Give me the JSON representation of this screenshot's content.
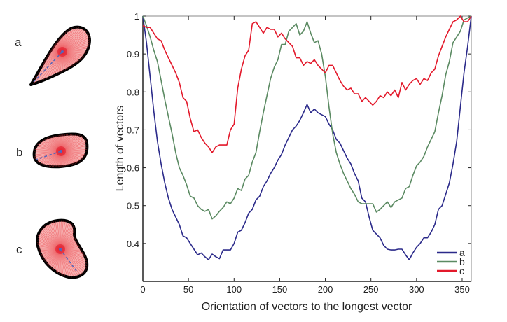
{
  "panels": [
    {
      "label": "a"
    },
    {
      "label": "b"
    },
    {
      "label": "c"
    }
  ],
  "colors": {
    "a": "#2b2a8a",
    "b": "#5b8a62",
    "c": "#e3192b",
    "shape_fill": "#f28b8b",
    "shape_outline": "#000000",
    "longest_vector": "#5566bb"
  },
  "chart_data": {
    "type": "line",
    "title": "",
    "xlabel": "Orientation of vectors to the longest vector",
    "ylabel": "Length of vectors",
    "xlim": [
      0,
      360
    ],
    "ylim": [
      0.3,
      1.0
    ],
    "xticks": [
      0,
      50,
      100,
      150,
      200,
      250,
      300,
      350
    ],
    "yticks": [
      0.4,
      0.5,
      0.6,
      0.7,
      0.8,
      0.9,
      1
    ],
    "xtick_labels": [
      "0",
      "50",
      "100",
      "150",
      "200",
      "250",
      "300",
      "350"
    ],
    "ytick_labels": [
      "0.4",
      "0.5",
      "0.6",
      "0.7",
      "0.8",
      "0.9",
      "1"
    ],
    "grid": false,
    "legend_position": "bottom-right",
    "x": [
      0,
      4,
      8,
      12,
      16,
      20,
      24,
      28,
      32,
      36,
      40,
      44,
      48,
      52,
      56,
      60,
      64,
      68,
      72,
      76,
      80,
      84,
      88,
      92,
      96,
      100,
      104,
      108,
      112,
      116,
      120,
      124,
      128,
      132,
      136,
      140,
      144,
      148,
      152,
      156,
      160,
      164,
      168,
      172,
      176,
      180,
      184,
      188,
      192,
      196,
      200,
      204,
      208,
      212,
      216,
      220,
      224,
      228,
      232,
      236,
      240,
      244,
      248,
      252,
      256,
      260,
      264,
      268,
      272,
      276,
      280,
      284,
      288,
      292,
      296,
      300,
      304,
      308,
      312,
      316,
      320,
      324,
      328,
      332,
      336,
      340,
      344,
      348,
      352,
      356,
      360
    ],
    "series": [
      {
        "name": "a",
        "color": "#2b2a8a",
        "values": [
          1.0,
          0.93,
          0.84,
          0.75,
          0.67,
          0.61,
          0.56,
          0.52,
          0.49,
          0.47,
          0.45,
          0.42,
          0.415,
          0.4,
          0.385,
          0.37,
          0.375,
          0.365,
          0.357,
          0.372,
          0.365,
          0.36,
          0.383,
          0.383,
          0.383,
          0.4,
          0.43,
          0.435,
          0.455,
          0.48,
          0.49,
          0.515,
          0.525,
          0.55,
          0.565,
          0.585,
          0.6,
          0.62,
          0.635,
          0.66,
          0.68,
          0.7,
          0.71,
          0.725,
          0.745,
          0.767,
          0.745,
          0.755,
          0.745,
          0.74,
          0.735,
          0.715,
          0.7,
          0.675,
          0.665,
          0.645,
          0.625,
          0.61,
          0.585,
          0.565,
          0.52,
          0.51,
          0.47,
          0.435,
          0.425,
          0.415,
          0.395,
          0.385,
          0.383,
          0.383,
          0.385,
          0.385,
          0.37,
          0.357,
          0.375,
          0.39,
          0.4,
          0.415,
          0.415,
          0.43,
          0.45,
          0.49,
          0.5,
          0.53,
          0.56,
          0.61,
          0.67,
          0.76,
          0.85,
          0.92,
          1.0
        ]
      },
      {
        "name": "b",
        "color": "#5b8a62",
        "values": [
          1.0,
          0.975,
          0.945,
          0.91,
          0.88,
          0.83,
          0.78,
          0.735,
          0.69,
          0.64,
          0.6,
          0.58,
          0.555,
          0.525,
          0.52,
          0.5,
          0.49,
          0.485,
          0.49,
          0.465,
          0.473,
          0.485,
          0.495,
          0.51,
          0.505,
          0.52,
          0.545,
          0.54,
          0.57,
          0.58,
          0.615,
          0.64,
          0.695,
          0.745,
          0.79,
          0.835,
          0.865,
          0.885,
          0.925,
          0.925,
          0.96,
          0.97,
          0.98,
          0.95,
          0.96,
          0.985,
          0.955,
          0.93,
          0.935,
          0.9,
          0.84,
          0.76,
          0.69,
          0.64,
          0.61,
          0.585,
          0.565,
          0.545,
          0.53,
          0.51,
          0.505,
          0.505,
          0.505,
          0.505,
          0.483,
          0.49,
          0.5,
          0.51,
          0.495,
          0.51,
          0.515,
          0.52,
          0.545,
          0.55,
          0.58,
          0.605,
          0.615,
          0.63,
          0.655,
          0.675,
          0.695,
          0.745,
          0.79,
          0.845,
          0.88,
          0.93,
          0.945,
          0.96,
          0.99,
          0.995,
          1.0
        ]
      },
      {
        "name": "c",
        "color": "#e3192b",
        "values": [
          0.975,
          0.97,
          0.97,
          0.955,
          0.94,
          0.935,
          0.91,
          0.89,
          0.87,
          0.85,
          0.825,
          0.785,
          0.775,
          0.73,
          0.695,
          0.7,
          0.68,
          0.665,
          0.655,
          0.64,
          0.655,
          0.66,
          0.66,
          0.66,
          0.7,
          0.715,
          0.81,
          0.86,
          0.895,
          0.91,
          0.98,
          0.985,
          0.97,
          0.955,
          0.97,
          0.965,
          0.965,
          0.945,
          0.955,
          0.94,
          0.93,
          0.92,
          0.89,
          0.89,
          0.87,
          0.88,
          0.875,
          0.885,
          0.87,
          0.86,
          0.85,
          0.87,
          0.87,
          0.85,
          0.83,
          0.815,
          0.805,
          0.81,
          0.795,
          0.795,
          0.775,
          0.785,
          0.775,
          0.765,
          0.775,
          0.79,
          0.785,
          0.8,
          0.79,
          0.805,
          0.785,
          0.825,
          0.805,
          0.82,
          0.83,
          0.835,
          0.82,
          0.835,
          0.83,
          0.85,
          0.86,
          0.895,
          0.92,
          0.945,
          0.965,
          0.985,
          0.99,
          1.0,
          0.985,
          0.985,
          1.0
        ]
      }
    ]
  }
}
